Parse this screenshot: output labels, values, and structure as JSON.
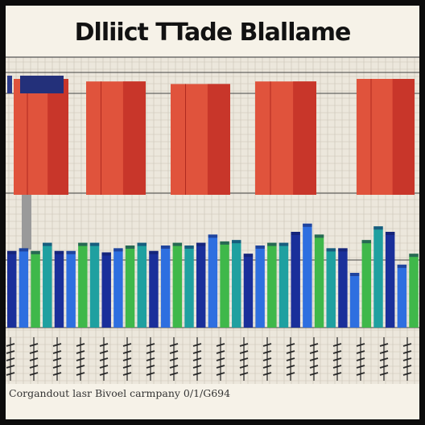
{
  "chart_data": [
    {
      "type": "bar",
      "title": "Dlliict TTade Blallame",
      "series": [
        {
          "values": [
            90,
            88,
            86,
            88,
            90
          ],
          "colors": [
            "#e0533c",
            "#c8362a"
          ]
        }
      ],
      "ylim": [
        0,
        100
      ],
      "grid": true
    },
    {
      "type": "bar",
      "series": [
        {
          "values": [
            56,
            58,
            56,
            62,
            56,
            56,
            62,
            62,
            55,
            58,
            60,
            62,
            56,
            60,
            62,
            60,
            62,
            68,
            63,
            64,
            54,
            60,
            62,
            62,
            70,
            76,
            68,
            58,
            58,
            40,
            64,
            74,
            70,
            46,
            54
          ],
          "colors": [
            "#1a2f9a",
            "#2e6fe0",
            "#3fb84a",
            "#1fa0a0"
          ]
        }
      ],
      "ylim": [
        0,
        100
      ],
      "grid": true
    }
  ],
  "footer_text": "Corgandout lasr Bivoel carmpany 0/1/G694"
}
